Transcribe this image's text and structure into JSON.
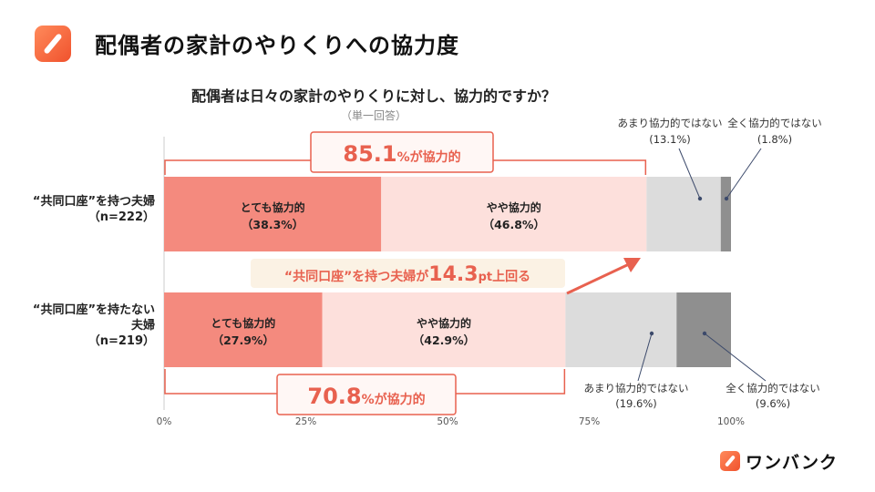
{
  "header": {
    "title": "配偶者の家計のやりくりへの協力度"
  },
  "brand": {
    "name": "ワンバンク"
  },
  "chart_data": {
    "type": "stacked-bar-horizontal",
    "title": "配偶者は日々の家計のやりくりに対し、協力的ですか？",
    "subtitle": "（単一回答）",
    "categories": [
      {
        "line1": "“共同口座”を持つ夫婦",
        "line2": "",
        "n": "（n=222）"
      },
      {
        "line1": "“共同口座”を持たない",
        "line2": "夫婦",
        "n": "（n=219）"
      }
    ],
    "series": [
      {
        "name": "とても協力的",
        "values": [
          38.3,
          27.9
        ],
        "color": "#f48a7e",
        "labels": [
          "（38.3%）",
          "（27.9%）"
        ]
      },
      {
        "name": "やや協力的",
        "values": [
          46.8,
          42.9
        ],
        "color": "#fde0dc",
        "labels": [
          "（46.8%）",
          "（42.9%）"
        ]
      },
      {
        "name": "あまり協力的ではない",
        "values": [
          13.1,
          19.6
        ],
        "color": "#dcdcdc",
        "labels": [
          "(13.1%)",
          "(19.6%)"
        ]
      },
      {
        "name": "全く協力的ではない",
        "values": [
          1.8,
          9.6
        ],
        "color": "#8f8f8f",
        "labels": [
          "(1.8%)",
          "(9.6%)"
        ]
      }
    ],
    "xticks": [
      "0%",
      "25%",
      "50%",
      "75%",
      "100%"
    ],
    "xlim": [
      0,
      100
    ],
    "annotations": {
      "top_total": {
        "num": "85.1",
        "unit": "%",
        "text": "が協力的"
      },
      "bottom_total": {
        "num": "70.8",
        "unit": "%",
        "text": "が協力的"
      },
      "diff": {
        "pre": "“共同口座”を持つ夫婦が",
        "num": "14.3",
        "unit": "pt",
        "post": "上回る"
      }
    },
    "colors": {
      "accent": "#e8614f",
      "axis": "#cccccc",
      "tick": "#555555"
    }
  }
}
